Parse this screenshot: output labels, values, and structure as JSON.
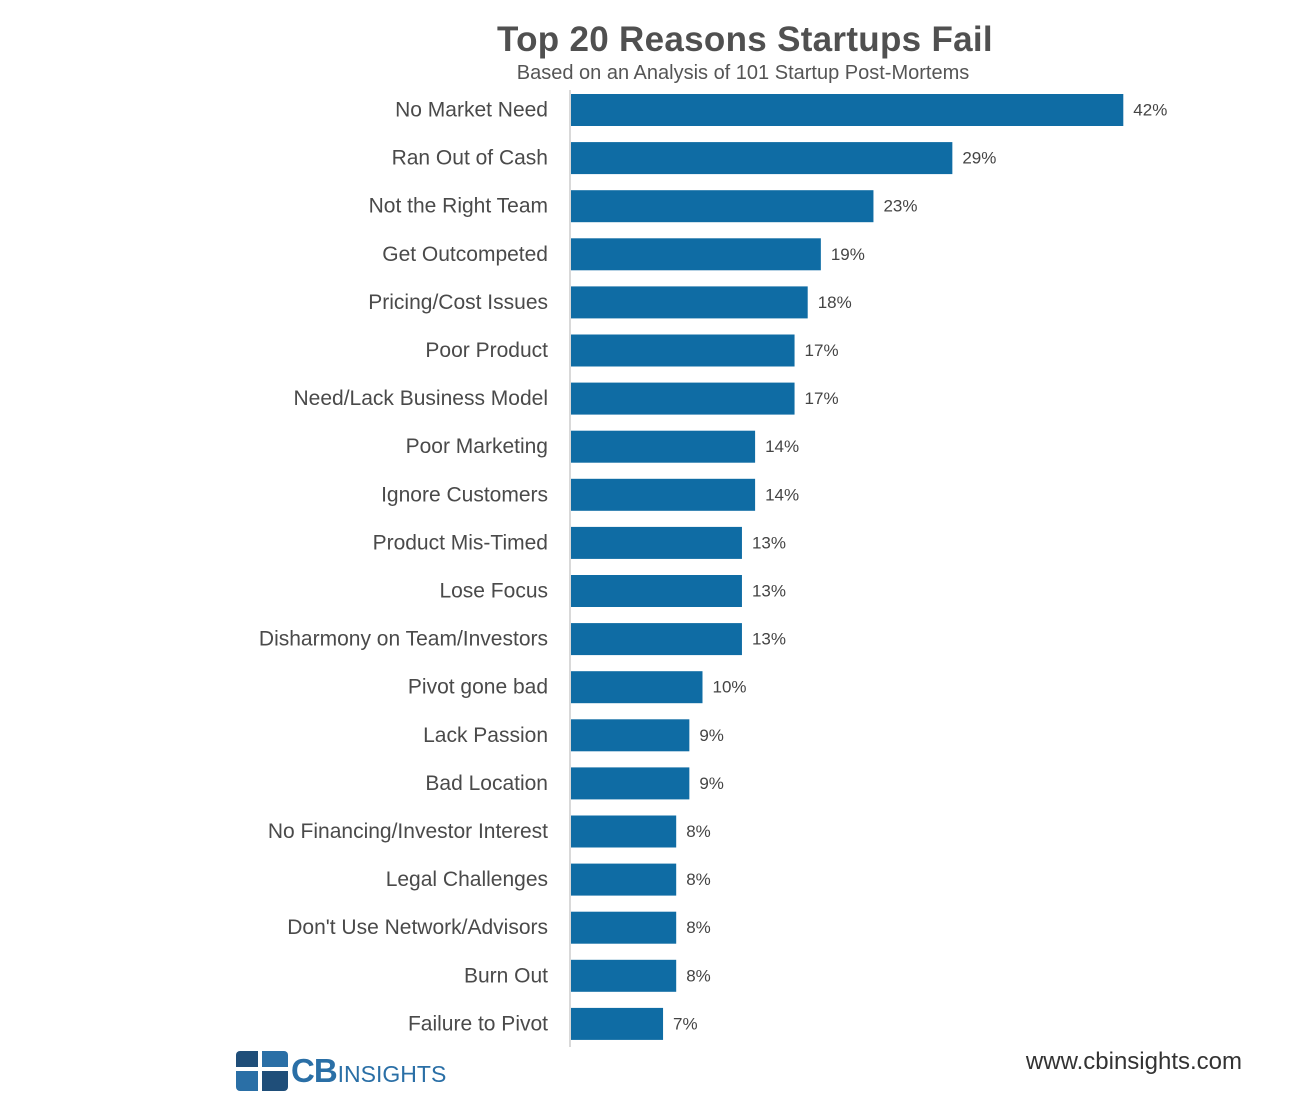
{
  "chart_data": {
    "type": "bar",
    "orientation": "horizontal",
    "title": "Top 20 Reasons Startups Fail",
    "subtitle": "Based on an Analysis of 101 Startup Post-Mortems",
    "categories": [
      "No Market Need",
      "Ran Out of Cash",
      "Not the Right Team",
      "Get Outcompeted",
      "Pricing/Cost Issues",
      "Poor Product",
      "Need/Lack Business Model",
      "Poor Marketing",
      "Ignore Customers",
      "Product Mis-Timed",
      "Lose Focus",
      "Disharmony on Team/Investors",
      "Pivot gone bad",
      "Lack Passion",
      "Bad Location",
      "No Financing/Investor Interest",
      "Legal Challenges",
      "Don't Use Network/Advisors",
      "Burn Out",
      "Failure to Pivot"
    ],
    "values": [
      42,
      29,
      23,
      19,
      18,
      17,
      17,
      14,
      14,
      13,
      13,
      13,
      10,
      9,
      9,
      8,
      8,
      8,
      8,
      7
    ],
    "value_labels": [
      "42%",
      "29%",
      "23%",
      "19%",
      "18%",
      "17%",
      "17%",
      "14%",
      "14%",
      "13%",
      "13%",
      "13%",
      "10%",
      "9%",
      "9%",
      "8%",
      "8%",
      "8%",
      "8%",
      "7%"
    ],
    "bar_color": "#0f6ca4",
    "grid": false,
    "legend": "none"
  },
  "footer": {
    "logo_cb": "CB",
    "logo_insights": "INSIGHTS",
    "url": "www.cbinsights.com"
  },
  "colors": {
    "brand_blue": "#2a6fa6",
    "logo_dark": "#1f4e79"
  }
}
